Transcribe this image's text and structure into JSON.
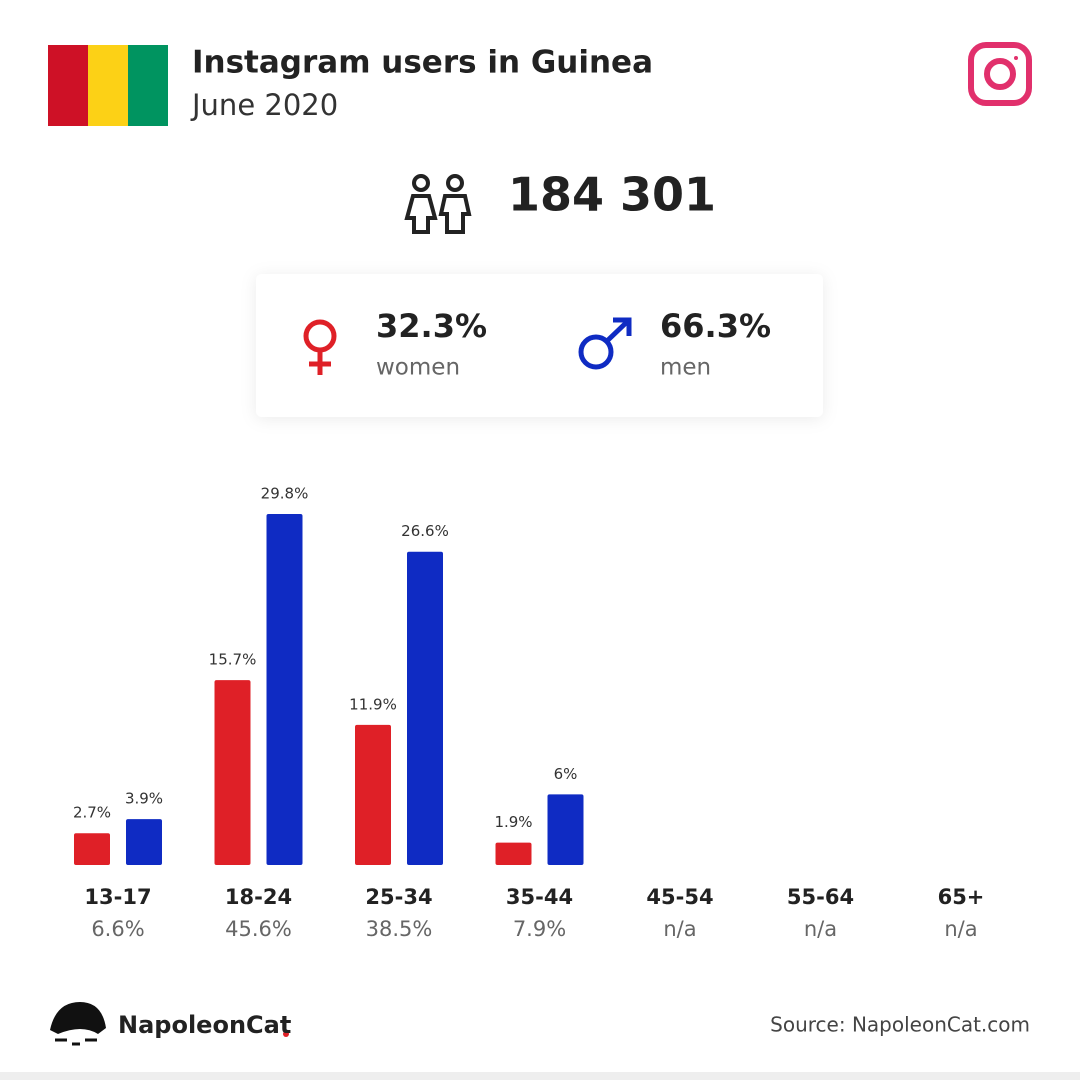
{
  "header": {
    "title": "Instagram users in Guinea",
    "subtitle": "June 2020"
  },
  "total": "184 301",
  "chart_data": {
    "type": "bar",
    "categories": [
      "13-17",
      "18-24",
      "25-34",
      "35-44",
      "45-54",
      "55-64",
      "65+"
    ],
    "totals": [
      {
        "value": 6.6,
        "label": "6.6%"
      },
      {
        "value": 45.6,
        "label": "45.6%"
      },
      {
        "value": 38.5,
        "label": "38.5%"
      },
      {
        "value": 7.9,
        "label": "7.9%"
      },
      {
        "value": null,
        "label": "n/a"
      },
      {
        "value": null,
        "label": "n/a"
      },
      {
        "value": null,
        "label": "n/a"
      }
    ],
    "series": [
      {
        "name": "women",
        "color": "#df2027",
        "share": {
          "value": 32.3,
          "label": "32.3%"
        },
        "values": [
          2.7,
          15.7,
          11.9,
          1.9,
          null,
          null,
          null
        ],
        "value_labels": [
          "2.7%",
          "15.7%",
          "11.9%",
          "1.9%",
          null,
          null,
          null
        ]
      },
      {
        "name": "men",
        "color": "#0f2bc3",
        "share": {
          "value": 66.3,
          "label": "66.3%"
        },
        "values": [
          3.9,
          29.8,
          26.6,
          6,
          null,
          null,
          null
        ],
        "value_labels": [
          "3.9%",
          "29.8%",
          "26.6%",
          "6%",
          null,
          null,
          null
        ]
      }
    ]
  },
  "footer": {
    "brand": "NapoleonCat",
    "source": "Source: NapoleonCat.com"
  }
}
